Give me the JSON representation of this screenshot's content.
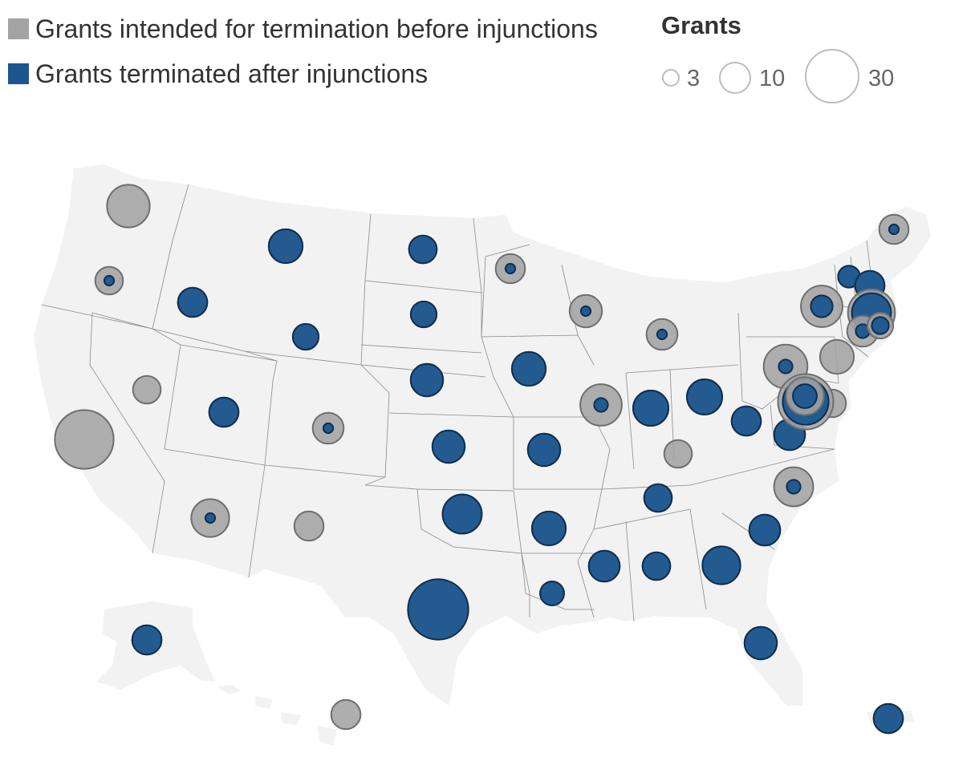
{
  "legend": {
    "before_label": "Grants intended for termination before injunctions",
    "after_label": "Grants terminated after injunctions",
    "size_title": "Grants",
    "size_values": [
      "3",
      "10",
      "30"
    ]
  },
  "colors": {
    "before": "#a3a3a3",
    "after": "#1b568f",
    "land": "#f2f2f2",
    "border": "#8a8a8a"
  },
  "states": [
    {
      "code": "WA",
      "before": 19,
      "after": 0
    },
    {
      "code": "OR",
      "before": 8,
      "after": 1
    },
    {
      "code": "CA",
      "before": 36,
      "after": 0
    },
    {
      "code": "NV",
      "before": 8,
      "after": 0
    },
    {
      "code": "ID",
      "before": 9,
      "after": 9
    },
    {
      "code": "MT",
      "before": 12,
      "after": 12
    },
    {
      "code": "WY",
      "before": 7,
      "after": 7
    },
    {
      "code": "UT",
      "before": 9,
      "after": 9
    },
    {
      "code": "AZ",
      "before": 15,
      "after": 1
    },
    {
      "code": "CO",
      "before": 10,
      "after": 1
    },
    {
      "code": "NM",
      "before": 9,
      "after": 0
    },
    {
      "code": "ND",
      "before": 8,
      "after": 8
    },
    {
      "code": "SD",
      "before": 7,
      "after": 7
    },
    {
      "code": "NE",
      "before": 11,
      "after": 11
    },
    {
      "code": "KS",
      "before": 11,
      "after": 11
    },
    {
      "code": "OK",
      "before": 16,
      "after": 16
    },
    {
      "code": "TX",
      "before": 38,
      "after": 38
    },
    {
      "code": "MN",
      "before": 9,
      "after": 1
    },
    {
      "code": "IA",
      "before": 12,
      "after": 12
    },
    {
      "code": "MO",
      "before": 11,
      "after": 11
    },
    {
      "code": "AR",
      "before": 12,
      "after": 12
    },
    {
      "code": "LA",
      "before": 6,
      "after": 6
    },
    {
      "code": "WI",
      "before": 11,
      "after": 1
    },
    {
      "code": "IL",
      "before": 18,
      "after": 2
    },
    {
      "code": "MI",
      "before": 10,
      "after": 1
    },
    {
      "code": "IN",
      "before": 13,
      "after": 13
    },
    {
      "code": "OH",
      "before": 13,
      "after": 13
    },
    {
      "code": "KY",
      "before": 8,
      "after": 0
    },
    {
      "code": "TN",
      "before": 8,
      "after": 8
    },
    {
      "code": "MS",
      "before": 10,
      "after": 10
    },
    {
      "code": "AL",
      "before": 8,
      "after": 8
    },
    {
      "code": "GA",
      "before": 15,
      "after": 15
    },
    {
      "code": "FL",
      "before": 11,
      "after": 11
    },
    {
      "code": "SC",
      "before": 10,
      "after": 10
    },
    {
      "code": "NC",
      "before": 16,
      "after": 2
    },
    {
      "code": "VA",
      "before": 10,
      "after": 10
    },
    {
      "code": "WV",
      "before": 9,
      "after": 9
    },
    {
      "code": "PA",
      "before": 20,
      "after": 2
    },
    {
      "code": "NY",
      "before": 18,
      "after": 5
    },
    {
      "code": "VT",
      "before": 5,
      "after": 5
    },
    {
      "code": "NH",
      "before": 9,
      "after": 9
    },
    {
      "code": "ME",
      "before": 9,
      "after": 1
    },
    {
      "code": "MA",
      "before": 23,
      "after": 16
    },
    {
      "code": "CT",
      "before": 10,
      "after": 2
    },
    {
      "code": "RI",
      "before": 7,
      "after": 3
    },
    {
      "code": "NJ",
      "before": 12,
      "after": 0
    },
    {
      "code": "DE",
      "before": 8,
      "after": 0
    },
    {
      "code": "MD",
      "before": 32,
      "after": 22
    },
    {
      "code": "DC",
      "before": 15,
      "after": 6
    },
    {
      "code": "AK",
      "before": 9,
      "after": 9
    },
    {
      "code": "HI",
      "before": 9,
      "after": 0
    },
    {
      "code": "PR",
      "before": 9,
      "after": 9
    }
  ]
}
